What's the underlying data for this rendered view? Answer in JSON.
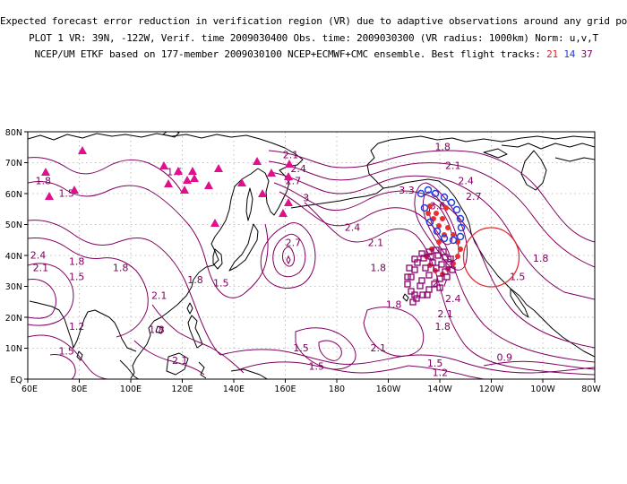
{
  "header": {
    "line1": "Expected forecast error reduction in verification region (VR) due to adaptive observations around any grid point.",
    "line2": "PLOT 1 VR: 39N, -122W, Verif. time 2009030400 Obs. time: 2009030300 (VR radius: 1000km) Norm: u,v,T",
    "line3_prefix": "NCEP/UM ETKF based on 177-member 2009030100 NCEP+ECMWF+CMC ensemble. Best flight tracks:",
    "track_red": "21",
    "track_blue": "14",
    "track_purple": "37"
  },
  "map": {
    "lat_labels": [
      "80N",
      "70N",
      "60N",
      "50N",
      "40N",
      "30N",
      "20N",
      "10N",
      "EQ"
    ],
    "lon_labels": [
      "60E",
      "80E",
      "100E",
      "120E",
      "140E",
      "160E",
      "180",
      "160W",
      "140W",
      "120W",
      "100W",
      "80W"
    ],
    "contour_labels": [
      {
        "text": "2.1",
        "lon": 162,
        "lat": 71.5
      },
      {
        "text": "2.4",
        "lon": 165,
        "lat": 67
      },
      {
        "text": "2.7",
        "lon": 163,
        "lat": 63
      },
      {
        "text": "3",
        "lon": 168,
        "lat": 57.5
      },
      {
        "text": "1.8",
        "lon": 221,
        "lat": 74
      },
      {
        "text": "2.1",
        "lon": 225,
        "lat": 68
      },
      {
        "text": "2.4",
        "lon": 230,
        "lat": 63
      },
      {
        "text": "2.7",
        "lon": 233,
        "lat": 58
      },
      {
        "text": "3.3",
        "lon": 207,
        "lat": 60
      },
      {
        "text": "3.6",
        "lon": 219,
        "lat": 55
      },
      {
        "text": "2.4",
        "lon": 186,
        "lat": 48
      },
      {
        "text": "2.1",
        "lon": 195,
        "lat": 43
      },
      {
        "text": "1.8",
        "lon": 196,
        "lat": 35
      },
      {
        "text": "2.7",
        "lon": 163,
        "lat": 43
      },
      {
        "text": "1.5",
        "lon": 117,
        "lat": 66
      },
      {
        "text": "1.8",
        "lon": 66,
        "lat": 63
      },
      {
        "text": "1.5",
        "lon": 75,
        "lat": 59
      },
      {
        "text": "1.8",
        "lon": 96,
        "lat": 35
      },
      {
        "text": "2.1",
        "lon": 111,
        "lat": 26
      },
      {
        "text": "1.8",
        "lon": 125,
        "lat": 31
      },
      {
        "text": "1.5",
        "lon": 135,
        "lat": 30
      },
      {
        "text": "2.4",
        "lon": 64,
        "lat": 39
      },
      {
        "text": "2.1",
        "lon": 65,
        "lat": 35
      },
      {
        "text": "1.8",
        "lon": 79,
        "lat": 37
      },
      {
        "text": "1.5",
        "lon": 79,
        "lat": 32
      },
      {
        "text": "1.2",
        "lon": 79,
        "lat": 16
      },
      {
        "text": "1.5",
        "lon": 75,
        "lat": 8
      },
      {
        "text": "1.8",
        "lon": 110,
        "lat": 15
      },
      {
        "text": "2.1",
        "lon": 119,
        "lat": 5
      },
      {
        "text": "1.8",
        "lon": 202,
        "lat": 23
      },
      {
        "text": "2.1",
        "lon": 196,
        "lat": 9
      },
      {
        "text": "1.5",
        "lon": 166,
        "lat": 9
      },
      {
        "text": "1.5",
        "lon": 172,
        "lat": 3
      },
      {
        "text": "1.2",
        "lon": 220,
        "lat": 1
      },
      {
        "text": "1.5",
        "lon": 218,
        "lat": 4
      },
      {
        "text": "2.7",
        "lon": 220,
        "lat": 30
      },
      {
        "text": "2.4",
        "lon": 225,
        "lat": 25
      },
      {
        "text": "2.1",
        "lon": 222,
        "lat": 20
      },
      {
        "text": "1.8",
        "lon": 221,
        "lat": 16
      },
      {
        "text": "3",
        "lon": 224,
        "lat": 36
      },
      {
        "text": "1.5",
        "lon": 250,
        "lat": 32
      },
      {
        "text": "1.8",
        "lon": 259,
        "lat": 38
      },
      {
        "text": "0.9",
        "lon": 245,
        "lat": 6
      }
    ]
  }
}
